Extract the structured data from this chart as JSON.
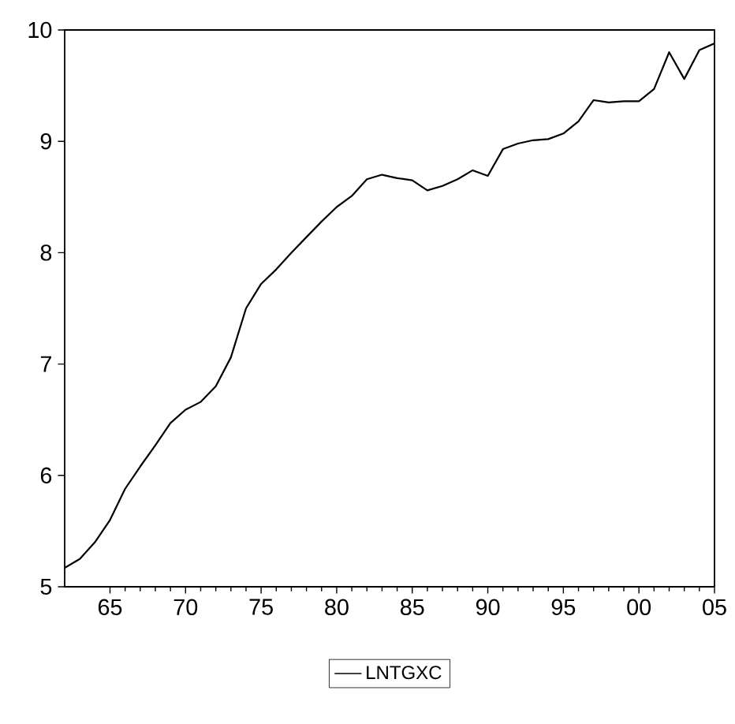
{
  "chart_data": {
    "type": "line",
    "x": [
      1962,
      1963,
      1964,
      1965,
      1966,
      1967,
      1968,
      1969,
      1970,
      1971,
      1972,
      1973,
      1974,
      1975,
      1976,
      1977,
      1978,
      1979,
      1980,
      1981,
      1982,
      1983,
      1984,
      1985,
      1986,
      1987,
      1988,
      1989,
      1990,
      1991,
      1992,
      1993,
      1994,
      1995,
      1996,
      1997,
      1998,
      1999,
      2000,
      2001,
      2002,
      2003,
      2004,
      2005
    ],
    "series": [
      {
        "name": "LNTGXC",
        "color": "#000000",
        "values": [
          5.17,
          5.25,
          5.4,
          5.6,
          5.88,
          6.08,
          6.27,
          6.47,
          6.59,
          6.66,
          6.8,
          7.06,
          7.5,
          7.72,
          7.85,
          8.0,
          8.14,
          8.28,
          8.41,
          8.51,
          8.66,
          8.7,
          8.67,
          8.65,
          8.56,
          8.6,
          8.66,
          8.74,
          8.69,
          8.93,
          8.98,
          9.01,
          9.02,
          9.07,
          9.18,
          9.37,
          9.35,
          9.36,
          9.36,
          9.47,
          9.8,
          9.56,
          9.82,
          9.88
        ]
      }
    ],
    "xlim": [
      1962,
      2005
    ],
    "ylim": [
      5,
      10
    ],
    "xticks": [
      {
        "value": 1965,
        "label": "65"
      },
      {
        "value": 1970,
        "label": "70"
      },
      {
        "value": 1975,
        "label": "75"
      },
      {
        "value": 1980,
        "label": "80"
      },
      {
        "value": 1985,
        "label": "85"
      },
      {
        "value": 1990,
        "label": "90"
      },
      {
        "value": 1995,
        "label": "95"
      },
      {
        "value": 2000,
        "label": "00"
      },
      {
        "value": 2005,
        "label": "05"
      }
    ],
    "yticks": [
      5,
      6,
      7,
      8,
      9,
      10
    ],
    "grid": false,
    "legend": "bottom",
    "marker": "none",
    "line_style": "solid"
  }
}
